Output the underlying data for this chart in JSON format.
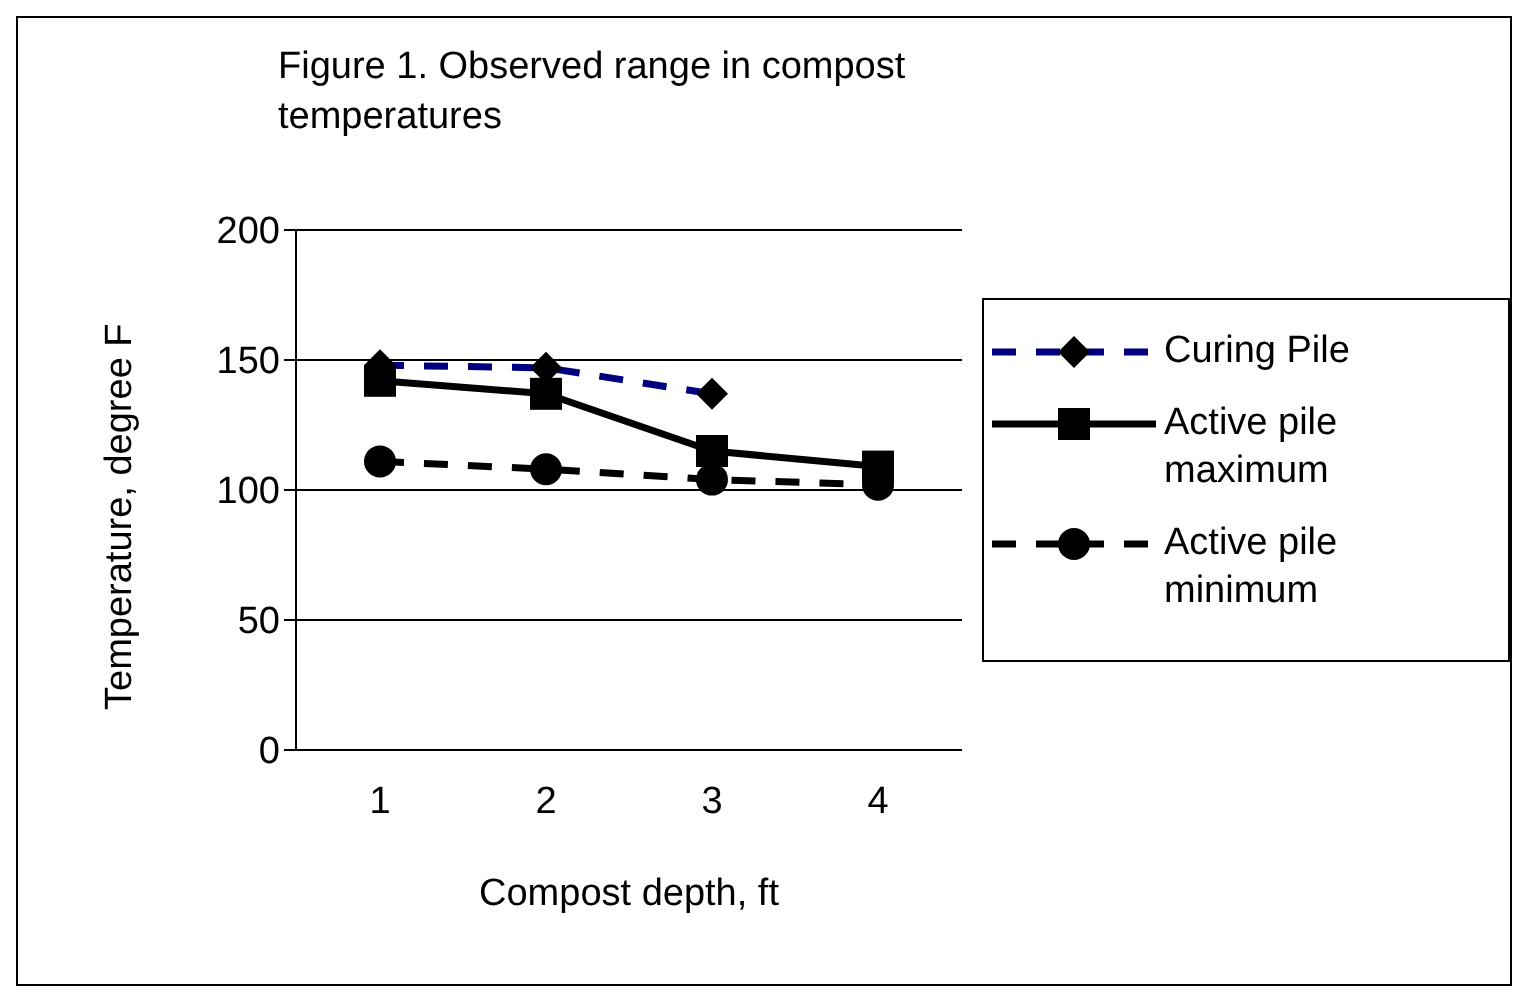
{
  "chart_data": {
    "type": "line",
    "title": "Figure 1. Observed range in compost temperatures",
    "xlabel": "Compost depth, ft",
    "ylabel": "Temperature, degree F",
    "categories": [
      "1",
      "2",
      "3",
      "4"
    ],
    "series": [
      {
        "name": "Curing Pile",
        "color": "#000080",
        "values": [
          148,
          147,
          137,
          null
        ],
        "line_style": "dashed",
        "marker": "diamond"
      },
      {
        "name": "Active pile maximum",
        "color": "#000000",
        "values": [
          142,
          137,
          115,
          109
        ],
        "line_style": "solid",
        "marker": "square"
      },
      {
        "name": "Active pile minimum",
        "color": "#000000",
        "values": [
          111,
          108,
          104,
          102
        ],
        "line_style": "dashed",
        "marker": "circle"
      }
    ],
    "ylim": [
      0,
      200
    ],
    "yticks": [
      0,
      50,
      100,
      150,
      200
    ],
    "grid": "y",
    "legend": "right"
  }
}
